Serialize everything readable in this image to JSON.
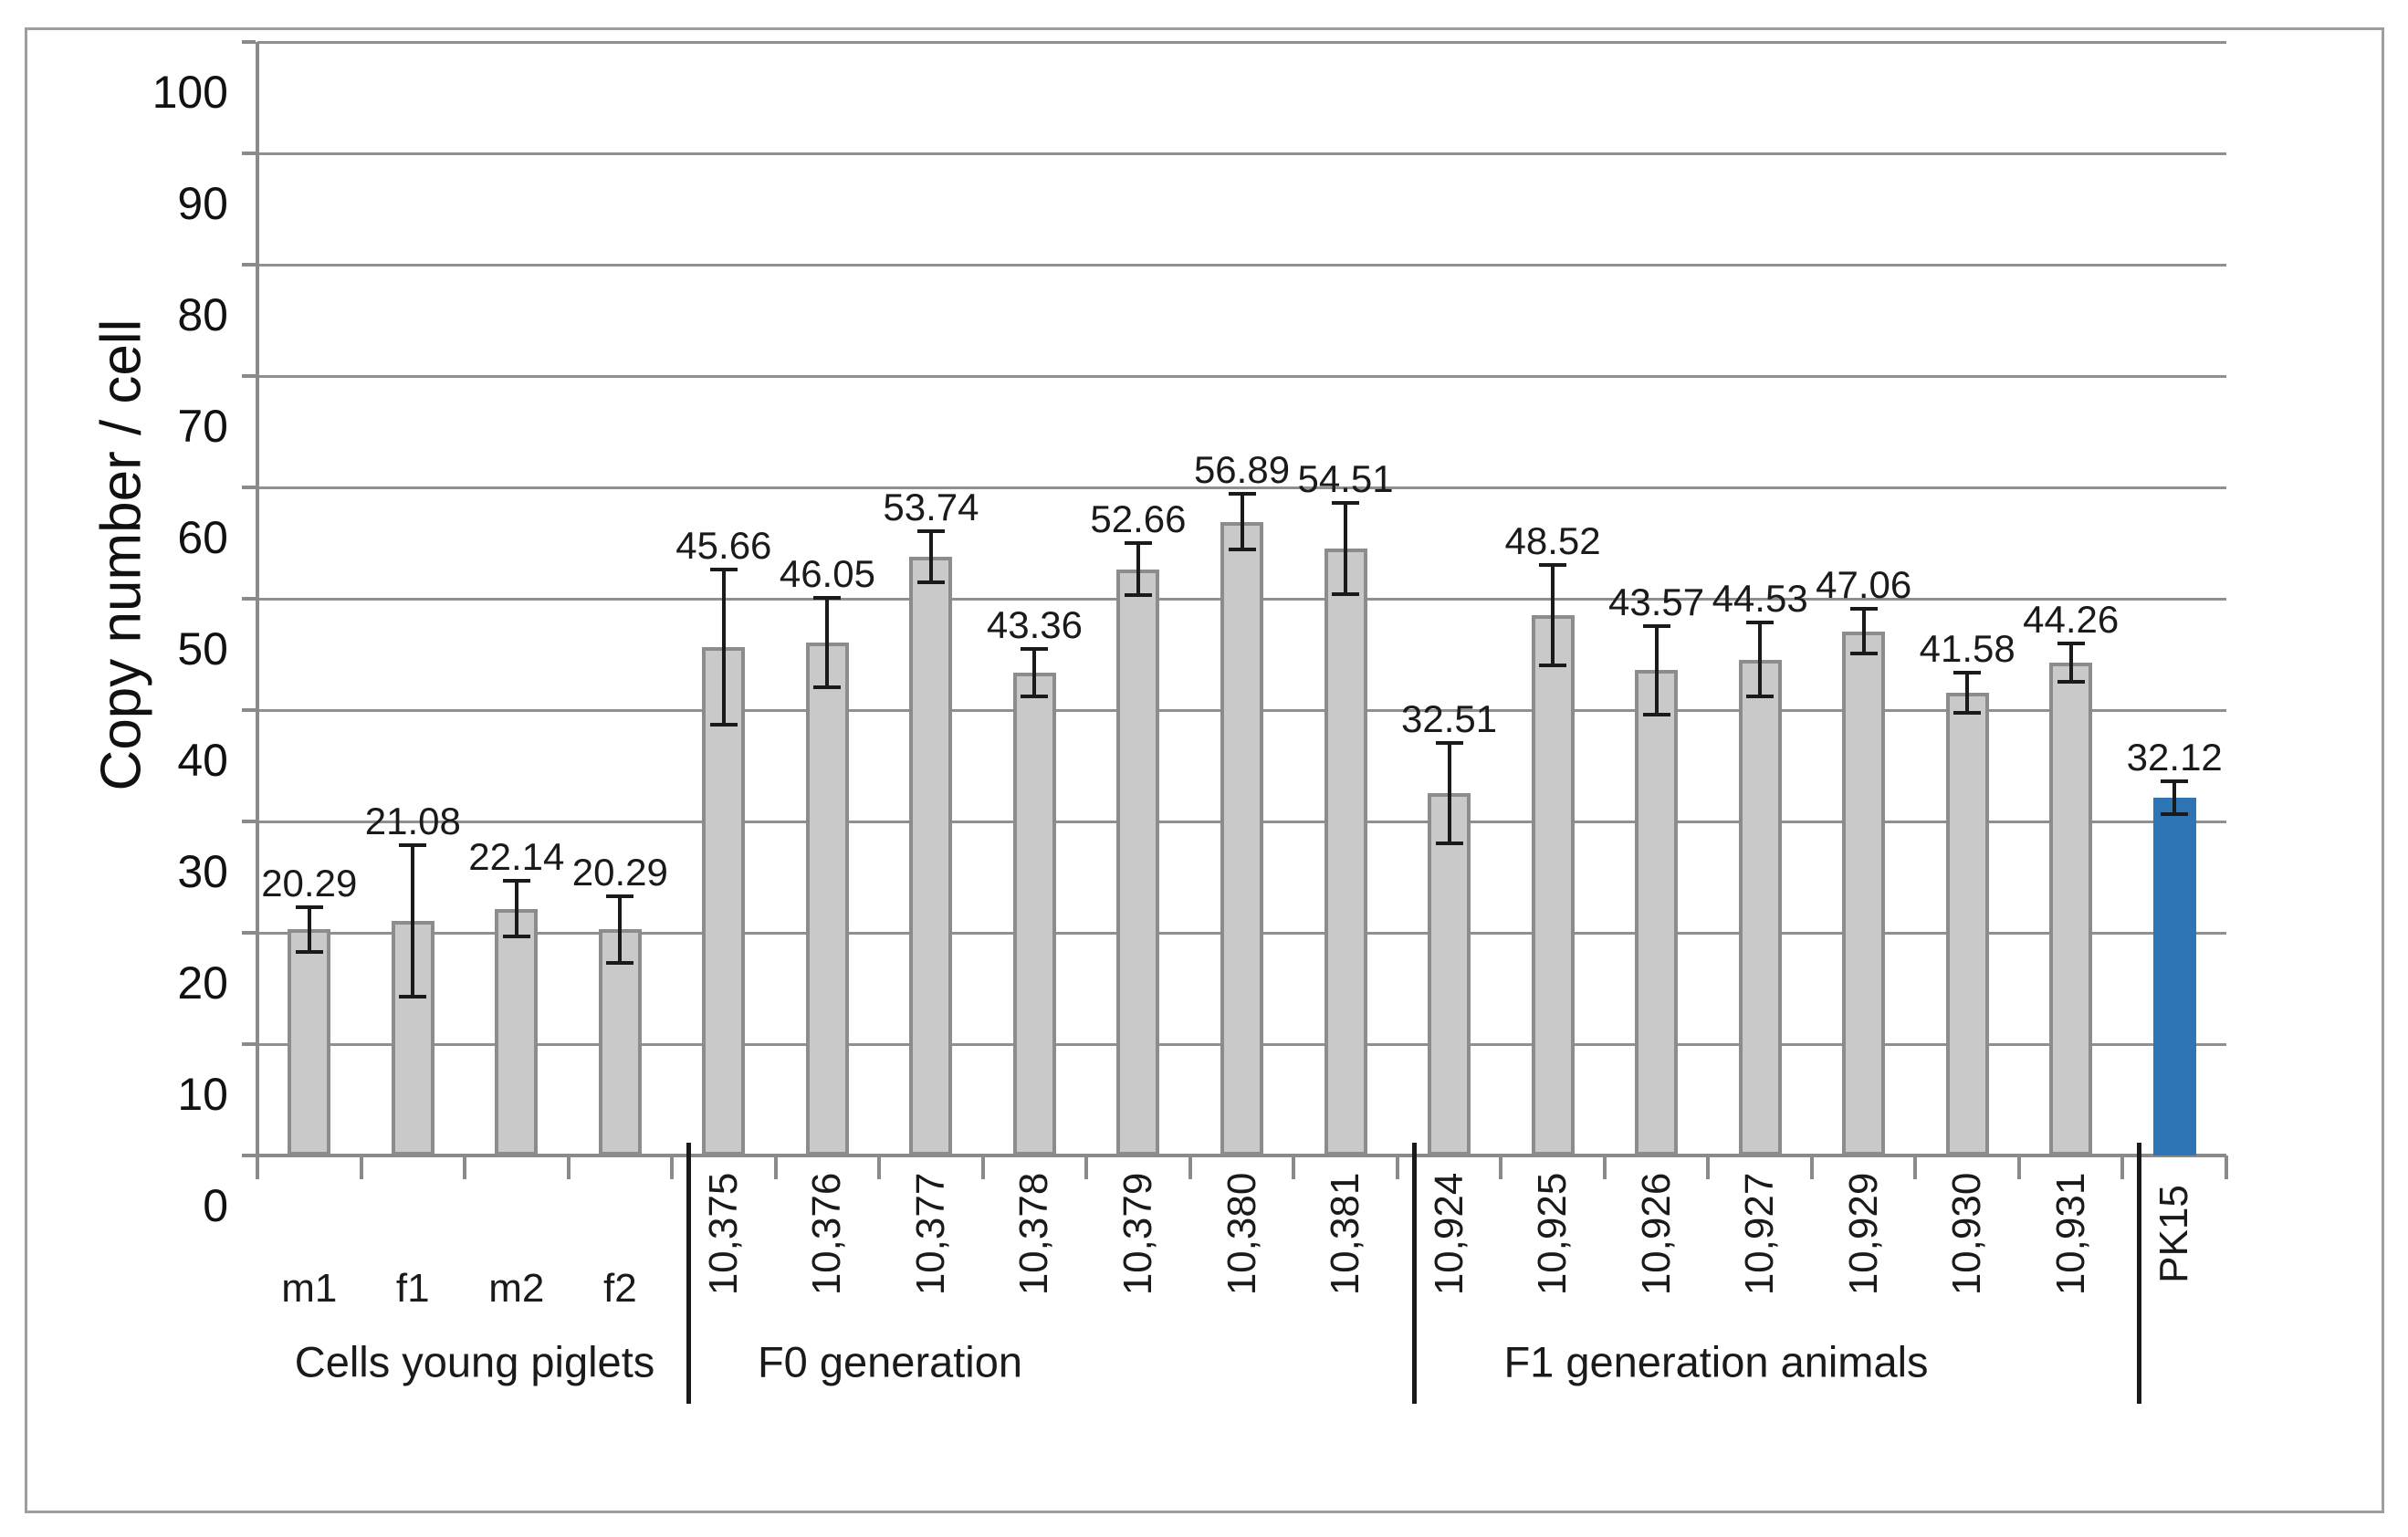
{
  "chart_data": {
    "type": "bar",
    "title": "",
    "ylabel": "Copy number / cell",
    "xlabel": "",
    "ylim": [
      0,
      100
    ],
    "yticks": [
      0,
      10,
      20,
      30,
      40,
      50,
      60,
      70,
      80,
      90,
      100
    ],
    "grid": true,
    "legend": null,
    "bar_color_default": "#C9C9C9",
    "bar_border_color": "#8C8C8C",
    "bar_color_highlight": "#2E75B6",
    "error_bar_color": "#1A1A1A",
    "groups": [
      {
        "label": "Cells young piglets",
        "tick_orientation": "horizontal",
        "bars": [
          {
            "category": "m1",
            "value": 20.29,
            "error": 2.0
          },
          {
            "category": "f1",
            "value": 21.08,
            "error": 6.8
          },
          {
            "category": "m2",
            "value": 22.14,
            "error": 2.5
          },
          {
            "category": "f2",
            "value": 20.29,
            "error": 3.0
          }
        ]
      },
      {
        "label": "F0 generation",
        "tick_orientation": "vertical",
        "bars": [
          {
            "category": "10,375",
            "value": 45.66,
            "error": 7.0
          },
          {
            "category": "10,376",
            "value": 46.05,
            "error": 4.0
          },
          {
            "category": "10,377",
            "value": 53.74,
            "error": 2.3
          },
          {
            "category": "10,378",
            "value": 43.36,
            "error": 2.1
          },
          {
            "category": "10,379",
            "value": 52.66,
            "error": 2.3
          },
          {
            "category": "10,380",
            "value": 56.89,
            "error": 2.5
          },
          {
            "category": "10,381",
            "value": 54.51,
            "error": 4.1
          }
        ]
      },
      {
        "label": "F1 generation animals",
        "tick_orientation": "vertical",
        "bars": [
          {
            "category": "10,924",
            "value": 32.51,
            "error": 4.5
          },
          {
            "category": "10,925",
            "value": 48.52,
            "error": 4.5
          },
          {
            "category": "10,926",
            "value": 43.57,
            "error": 4.0
          },
          {
            "category": "10,927",
            "value": 44.53,
            "error": 3.3
          },
          {
            "category": "10,929",
            "value": 47.06,
            "error": 2.0
          },
          {
            "category": "10,930",
            "value": 41.58,
            "error": 1.8
          },
          {
            "category": "10,931",
            "value": 44.26,
            "error": 1.7
          }
        ]
      },
      {
        "label": "",
        "tick_orientation": "vertical",
        "bars": [
          {
            "category": "PK15",
            "value": 32.12,
            "error": 1.5,
            "highlight": true
          }
        ]
      }
    ]
  },
  "colors": {
    "gridline": "#8F8F8F",
    "axis": "#8A8A8A",
    "separator": "#1A1A1A",
    "figure_border": "#9E9E9E",
    "text": "#1A1A1A",
    "background": "#FFFFFF"
  }
}
